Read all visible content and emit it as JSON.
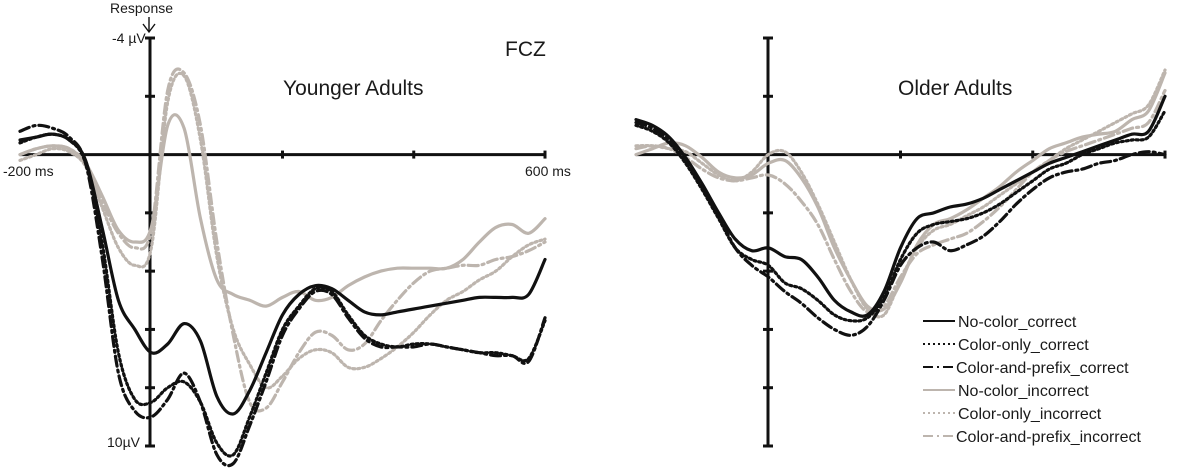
{
  "figure": {
    "response_label": "Response",
    "electrode": "FCZ",
    "y_top_label": "-4 µV",
    "y_bottom_label": "10µV",
    "x_left_label": "-200 ms",
    "x_right_label": "600 ms"
  },
  "legend": [
    {
      "key": "nc_c",
      "label": "No-color_correct"
    },
    {
      "key": "co_c",
      "label": "Color-only_correct"
    },
    {
      "key": "cp_c",
      "label": "Color-and-prefix_correct"
    },
    {
      "key": "nc_i",
      "label": "No-color_incorrect"
    },
    {
      "key": "co_i",
      "label": "Color-only_incorrect"
    },
    {
      "key": "cp_i",
      "label": "Color-and-prefix_incorrect"
    }
  ],
  "styles": {
    "nc_c": {
      "color": "#111111",
      "dash": ""
    },
    "co_c": {
      "color": "#111111",
      "dash": "2 3"
    },
    "cp_c": {
      "color": "#111111",
      "dash": "10 4 2 4"
    },
    "nc_i": {
      "color": "#bdb5ae",
      "dash": ""
    },
    "co_i": {
      "color": "#bdb5ae",
      "dash": "2 3"
    },
    "cp_i": {
      "color": "#bdb5ae",
      "dash": "10 4 2 4"
    }
  },
  "chart_data": [
    {
      "type": "line",
      "title": "Younger Adults",
      "xlabel": "",
      "ylabel": "",
      "x_unit": "ms",
      "y_unit": "µV",
      "xlim": [
        -200,
        600
      ],
      "ylim": [
        -4,
        10
      ],
      "y_inverted": true,
      "grid": false,
      "series": [
        {
          "key": "nc_c",
          "name": "No-color_correct",
          "x": [
            -200,
            -175,
            -150,
            -125,
            -100,
            -75,
            -50,
            -25,
            0,
            25,
            50,
            75,
            100,
            125,
            150,
            175,
            200,
            225,
            250,
            275,
            300,
            325,
            350,
            375,
            400,
            425,
            450,
            475,
            500,
            525,
            550,
            575,
            600
          ],
          "y": [
            -0.5,
            -0.6,
            -0.7,
            -0.5,
            0.2,
            2.5,
            5.0,
            6.0,
            6.8,
            6.5,
            5.8,
            6.4,
            8.3,
            8.9,
            8.1,
            6.8,
            5.5,
            4.8,
            4.5,
            4.6,
            5.0,
            5.4,
            5.5,
            5.4,
            5.3,
            5.2,
            5.1,
            5.0,
            4.9,
            4.9,
            4.9,
            4.8,
            3.6
          ]
        },
        {
          "key": "co_c",
          "name": "Color-only_correct",
          "x": [
            -200,
            -175,
            -150,
            -125,
            -100,
            -75,
            -50,
            -25,
            0,
            25,
            50,
            75,
            100,
            125,
            150,
            175,
            200,
            225,
            250,
            275,
            300,
            325,
            350,
            375,
            400,
            425,
            450,
            475,
            500,
            525,
            550,
            575,
            600
          ],
          "y": [
            -0.4,
            -0.6,
            -0.7,
            -0.5,
            0.3,
            3.0,
            6.8,
            8.4,
            8.5,
            8.0,
            7.8,
            8.5,
            9.9,
            10.3,
            9.0,
            7.5,
            6.0,
            5.2,
            4.6,
            4.7,
            5.5,
            6.2,
            6.5,
            6.6,
            6.5,
            6.5,
            6.6,
            6.7,
            6.8,
            6.8,
            6.9,
            7.0,
            5.7
          ]
        },
        {
          "key": "cp_c",
          "name": "Color-and-prefix_correct",
          "x": [
            -200,
            -175,
            -150,
            -125,
            -100,
            -75,
            -50,
            -25,
            0,
            25,
            50,
            75,
            100,
            125,
            150,
            175,
            200,
            225,
            250,
            275,
            300,
            325,
            350,
            375,
            400,
            425,
            450,
            475,
            500,
            525,
            550,
            575,
            600
          ],
          "y": [
            -0.8,
            -1.0,
            -0.9,
            -0.6,
            0.3,
            3.5,
            7.5,
            8.8,
            9.0,
            8.4,
            7.5,
            8.5,
            10.3,
            10.6,
            9.3,
            7.8,
            6.2,
            5.3,
            4.7,
            4.8,
            5.6,
            6.3,
            6.6,
            6.6,
            6.6,
            6.5,
            6.6,
            6.7,
            6.8,
            6.9,
            6.9,
            7.1,
            5.6
          ]
        },
        {
          "key": "nc_i",
          "name": "No-color_incorrect",
          "x": [
            -200,
            -175,
            -150,
            -125,
            -100,
            -75,
            -50,
            -25,
            0,
            25,
            50,
            75,
            100,
            125,
            150,
            175,
            200,
            225,
            250,
            275,
            300,
            325,
            350,
            375,
            400,
            425,
            450,
            475,
            500,
            525,
            550,
            575,
            600
          ],
          "y": [
            0.0,
            -0.2,
            -0.3,
            -0.2,
            0.3,
            1.4,
            2.6,
            3.0,
            2.5,
            -1.0,
            -0.9,
            2.2,
            4.3,
            4.8,
            5.0,
            5.2,
            4.9,
            4.7,
            5.0,
            4.9,
            4.5,
            4.2,
            4.0,
            3.9,
            3.9,
            3.9,
            3.9,
            3.6,
            3.0,
            2.5,
            2.4,
            2.7,
            2.2
          ]
        },
        {
          "key": "co_i",
          "name": "Color-only_incorrect",
          "x": [
            -200,
            -175,
            -150,
            -125,
            -100,
            -75,
            -50,
            -25,
            0,
            25,
            50,
            75,
            100,
            125,
            150,
            175,
            200,
            225,
            250,
            275,
            300,
            325,
            350,
            375,
            400,
            425,
            450,
            475,
            500,
            525,
            550,
            575,
            600
          ],
          "y": [
            0.2,
            0.0,
            -0.2,
            -0.1,
            0.4,
            1.8,
            3.2,
            3.8,
            3.2,
            -1.8,
            -2.7,
            -0.5,
            3.5,
            6.0,
            7.2,
            8.0,
            7.6,
            7.0,
            6.7,
            6.8,
            7.3,
            7.3,
            7.0,
            6.6,
            6.1,
            5.5,
            5.0,
            4.7,
            4.3,
            4.0,
            3.5,
            3.1,
            2.9
          ]
        },
        {
          "key": "cp_i",
          "name": "Color-and-prefix_incorrect",
          "x": [
            -200,
            -175,
            -150,
            -125,
            -100,
            -75,
            -50,
            -25,
            0,
            25,
            50,
            75,
            100,
            125,
            150,
            175,
            200,
            225,
            250,
            275,
            300,
            325,
            350,
            375,
            400,
            425,
            450,
            475,
            500,
            525,
            550,
            575,
            600
          ],
          "y": [
            0.0,
            -0.2,
            -0.3,
            -0.2,
            0.3,
            1.6,
            2.7,
            3.2,
            2.6,
            -2.2,
            -2.8,
            -1.0,
            3.0,
            6.2,
            8.5,
            8.7,
            7.8,
            6.8,
            6.1,
            6.2,
            6.7,
            6.5,
            5.7,
            5.0,
            4.4,
            4.0,
            3.9,
            3.8,
            3.8,
            3.6,
            3.5,
            3.3,
            3.0
          ]
        }
      ]
    },
    {
      "type": "line",
      "title": "Older Adults",
      "xlabel": "",
      "ylabel": "",
      "x_unit": "ms",
      "y_unit": "µV",
      "xlim": [
        -200,
        600
      ],
      "ylim": [
        -4,
        10
      ],
      "y_inverted": true,
      "grid": false,
      "series": [
        {
          "key": "nc_c",
          "name": "No-color_correct",
          "x": [
            -200,
            -175,
            -150,
            -125,
            -100,
            -75,
            -50,
            -25,
            0,
            25,
            50,
            75,
            100,
            125,
            150,
            175,
            200,
            225,
            250,
            275,
            300,
            325,
            350,
            375,
            400,
            425,
            450,
            475,
            500,
            525,
            550,
            575,
            600
          ],
          "y": [
            -1.2,
            -1.0,
            -0.6,
            0.1,
            1.0,
            2.0,
            2.9,
            3.3,
            3.2,
            3.5,
            3.6,
            4.2,
            5.0,
            5.4,
            5.5,
            4.7,
            3.2,
            2.2,
            2.0,
            1.8,
            1.7,
            1.5,
            1.2,
            0.9,
            0.6,
            0.3,
            0.1,
            -0.1,
            -0.3,
            -0.5,
            -0.7,
            -0.8,
            -2.0
          ]
        },
        {
          "key": "co_c",
          "name": "Color-only_correct",
          "x": [
            -200,
            -175,
            -150,
            -125,
            -100,
            -75,
            -50,
            -25,
            0,
            25,
            50,
            75,
            100,
            125,
            150,
            175,
            200,
            225,
            250,
            275,
            300,
            325,
            350,
            375,
            400,
            425,
            450,
            475,
            500,
            525,
            550,
            575,
            600
          ],
          "y": [
            -1.0,
            -0.8,
            -0.4,
            0.3,
            1.2,
            2.2,
            3.2,
            3.6,
            3.8,
            4.4,
            4.6,
            5.0,
            5.5,
            5.7,
            5.6,
            4.9,
            3.6,
            2.7,
            2.4,
            2.3,
            2.2,
            2.0,
            1.7,
            1.3,
            0.9,
            0.5,
            0.3,
            0.0,
            -0.2,
            -0.4,
            -0.5,
            -0.6,
            -1.5
          ]
        },
        {
          "key": "cp_c",
          "name": "Color-and-prefix_correct",
          "x": [
            -200,
            -175,
            -150,
            -125,
            -100,
            -75,
            -50,
            -25,
            0,
            25,
            50,
            75,
            100,
            125,
            150,
            175,
            200,
            225,
            250,
            275,
            300,
            325,
            350,
            375,
            400,
            425,
            450,
            475,
            500,
            525,
            550,
            575,
            600
          ],
          "y": [
            -1.1,
            -0.9,
            -0.5,
            0.2,
            1.1,
            2.1,
            3.2,
            3.8,
            4.2,
            4.7,
            5.1,
            5.6,
            6.0,
            6.2,
            5.9,
            5.0,
            3.8,
            3.2,
            3.0,
            3.3,
            3.1,
            2.8,
            2.3,
            1.7,
            1.2,
            0.8,
            0.6,
            0.5,
            0.3,
            0.2,
            0.0,
            -0.1,
            0.0
          ]
        },
        {
          "key": "nc_i",
          "name": "No-color_incorrect",
          "x": [
            -200,
            -175,
            -150,
            -125,
            -100,
            -75,
            -50,
            -25,
            0,
            25,
            50,
            75,
            100,
            125,
            150,
            175,
            200,
            225,
            250,
            275,
            300,
            325,
            350,
            375,
            400,
            425,
            450,
            475,
            500,
            525,
            550,
            575,
            600
          ],
          "y": [
            0.0,
            -0.2,
            -0.4,
            -0.3,
            0.1,
            0.6,
            0.8,
            0.7,
            0.3,
            0.2,
            0.8,
            1.8,
            3.2,
            4.3,
            5.2,
            5.3,
            4.4,
            3.1,
            2.4,
            2.2,
            1.9,
            1.5,
            1.1,
            0.6,
            0.2,
            -0.2,
            -0.4,
            -0.6,
            -0.7,
            -0.8,
            -1.2,
            -1.5,
            -2.8
          ]
        },
        {
          "key": "co_i",
          "name": "Color-only_incorrect",
          "x": [
            -200,
            -175,
            -150,
            -125,
            -100,
            -75,
            -50,
            -25,
            0,
            25,
            50,
            75,
            100,
            125,
            150,
            175,
            200,
            225,
            250,
            275,
            300,
            325,
            350,
            375,
            400,
            425,
            450,
            475,
            500,
            525,
            550,
            575,
            600
          ],
          "y": [
            -0.3,
            -0.3,
            -0.2,
            -0.1,
            0.3,
            0.7,
            0.9,
            0.6,
            0.0,
            -0.1,
            0.6,
            1.7,
            3.0,
            4.3,
            5.3,
            5.5,
            4.3,
            3.2,
            2.6,
            2.4,
            2.1,
            1.8,
            1.4,
            1.0,
            0.6,
            0.2,
            -0.2,
            -0.5,
            -0.8,
            -1.1,
            -1.4,
            -1.7,
            -2.9
          ]
        },
        {
          "key": "cp_i",
          "name": "Color-and-prefix_incorrect",
          "x": [
            -200,
            -175,
            -150,
            -125,
            -100,
            -75,
            -50,
            -25,
            0,
            25,
            50,
            75,
            100,
            125,
            150,
            175,
            200,
            225,
            250,
            275,
            300,
            325,
            350,
            375,
            400,
            425,
            450,
            475,
            500,
            525,
            550,
            575,
            600
          ],
          "y": [
            -0.2,
            -0.3,
            -0.2,
            0.1,
            0.5,
            0.8,
            0.9,
            0.8,
            0.7,
            1.0,
            1.6,
            2.4,
            3.6,
            4.7,
            5.4,
            5.2,
            4.2,
            3.4,
            3.1,
            2.9,
            2.7,
            2.3,
            1.8,
            1.2,
            0.6,
            0.2,
            -0.1,
            -0.3,
            -0.5,
            -0.7,
            -0.9,
            -1.1,
            -2.2
          ]
        }
      ]
    }
  ]
}
